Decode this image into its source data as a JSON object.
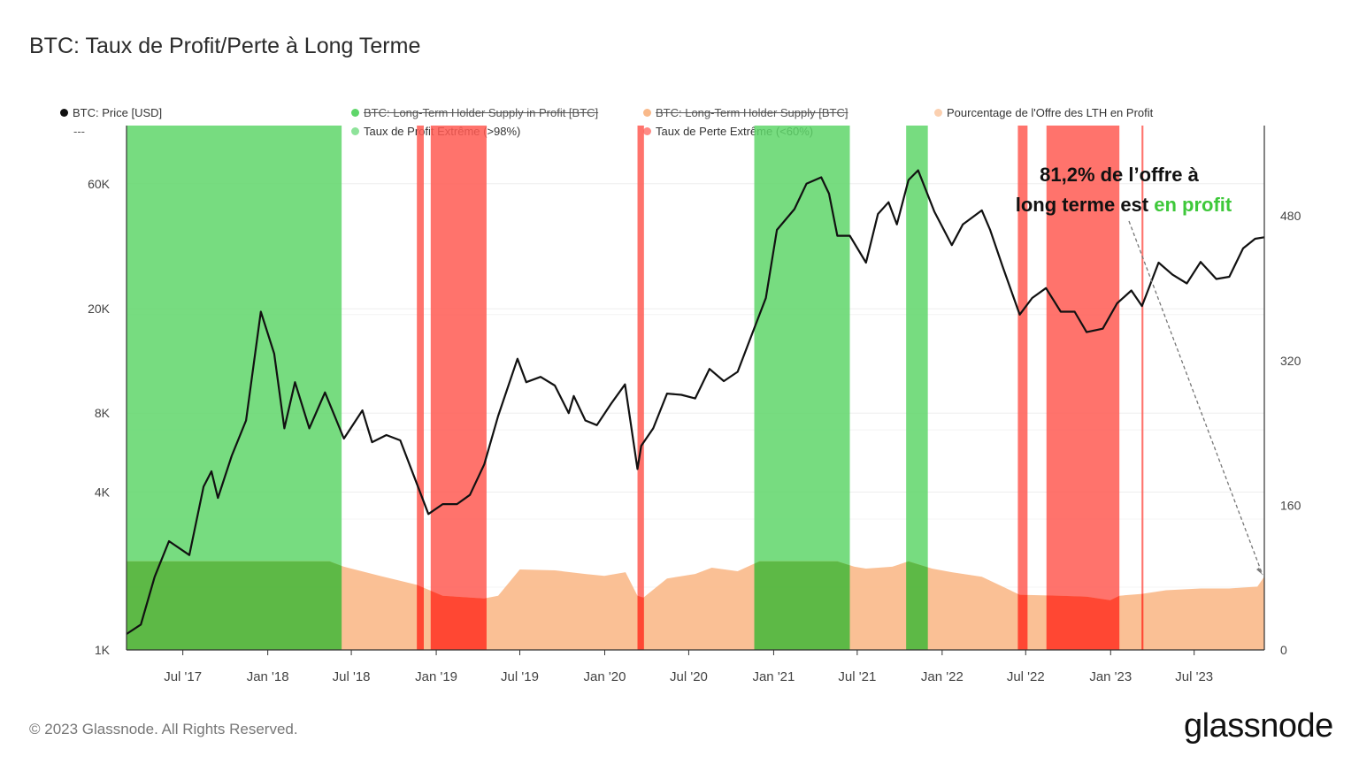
{
  "title": "BTC: Taux de Profit/Perte à Long Terme",
  "legend": {
    "price": "BTC: Price [USD]",
    "dash": "---",
    "lth_profit": "BTC: Long-Term Holder Supply in Profit [BTC]",
    "lth_supply": "BTC: Long-Term Holder Supply [BTC]",
    "pct_profit": "Pourcentage de l'Offre des LTH en Profit",
    "extreme_profit": "Taux de Profit Extrême (>98%)",
    "extreme_loss": "Taux de Perte Extrême (<60%)"
  },
  "annotation": {
    "line1": "81,2% de l’offre à",
    "line2_prefix": "long terme est ",
    "line2_highlight": "en profit"
  },
  "footer": "© 2023 Glassnode. All Rights Reserved.",
  "brand": "glassnode",
  "colors": {
    "price": "#111111",
    "profit_band": "#5fd66a",
    "loss_band": "#ff5a52",
    "pct_area": "#f9b98a",
    "highlight": "#3ec83a"
  },
  "chart_data": {
    "type": "line",
    "x_range": [
      "2017-03-01",
      "2023-11-30"
    ],
    "x_ticks": [
      "Jul '17",
      "Jan '18",
      "Jul '18",
      "Jan '19",
      "Jul '19",
      "Jan '20",
      "Jul '20",
      "Jan '21",
      "Jul '21",
      "Jan '22",
      "Jul '22",
      "Jan '23",
      "Jul '23"
    ],
    "y_left": {
      "scale": "log",
      "range": [
        1000,
        100000
      ],
      "ticks": [
        "1K",
        "4K",
        "8K",
        "20K",
        "60K"
      ],
      "tick_values": [
        1000,
        4000,
        8000,
        20000,
        60000
      ]
    },
    "y_right": {
      "scale": "linear",
      "range": [
        0,
        580
      ],
      "ticks": [
        "0",
        "160",
        "320",
        "480"
      ],
      "tick_values": [
        0,
        160,
        320,
        480
      ]
    },
    "series": [
      {
        "name": "BTC: Price [USD]",
        "axis": "left",
        "x": [
          "2017-03-01",
          "2017-04-01",
          "2017-05-01",
          "2017-06-01",
          "2017-07-15",
          "2017-08-15",
          "2017-09-01",
          "2017-09-15",
          "2017-10-15",
          "2017-11-15",
          "2017-12-17",
          "2018-01-15",
          "2018-02-06",
          "2018-03-01",
          "2018-04-01",
          "2018-05-05",
          "2018-06-15",
          "2018-07-25",
          "2018-08-15",
          "2018-09-15",
          "2018-10-15",
          "2018-11-20",
          "2018-12-15",
          "2019-01-15",
          "2019-02-15",
          "2019-03-15",
          "2019-04-15",
          "2019-05-15",
          "2019-06-26",
          "2019-07-15",
          "2019-08-15",
          "2019-09-15",
          "2019-10-15",
          "2019-10-26",
          "2019-11-20",
          "2019-12-15",
          "2020-01-15",
          "2020-02-14",
          "2020-03-12",
          "2020-03-20",
          "2020-04-15",
          "2020-05-15",
          "2020-06-15",
          "2020-07-15",
          "2020-08-15",
          "2020-09-15",
          "2020-10-15",
          "2020-11-15",
          "2020-12-15",
          "2021-01-08",
          "2021-02-15",
          "2021-03-13",
          "2021-04-14",
          "2021-05-01",
          "2021-05-19",
          "2021-06-15",
          "2021-07-20",
          "2021-08-15",
          "2021-09-07",
          "2021-09-25",
          "2021-10-20",
          "2021-11-10",
          "2021-12-15",
          "2022-01-22",
          "2022-02-15",
          "2022-03-28",
          "2022-04-15",
          "2022-05-12",
          "2022-06-18",
          "2022-07-15",
          "2022-08-14",
          "2022-09-15",
          "2022-10-15",
          "2022-11-10",
          "2022-12-15",
          "2023-01-15",
          "2023-02-15",
          "2023-03-10",
          "2023-04-15",
          "2023-05-15",
          "2023-06-15",
          "2023-07-15",
          "2023-08-18",
          "2023-09-15",
          "2023-10-15",
          "2023-11-10",
          "2023-11-30"
        ],
        "values": [
          1150,
          1250,
          1900,
          2600,
          2300,
          4200,
          4800,
          3800,
          5500,
          7500,
          19500,
          13500,
          7000,
          10500,
          7000,
          9600,
          6400,
          8200,
          6200,
          6600,
          6300,
          4300,
          3300,
          3600,
          3600,
          3900,
          5100,
          7800,
          12900,
          10500,
          11000,
          10200,
          8000,
          9300,
          7500,
          7200,
          8700,
          10300,
          4900,
          6000,
          7000,
          9500,
          9400,
          9100,
          11800,
          10600,
          11500,
          16000,
          22000,
          40000,
          48000,
          60000,
          63500,
          55000,
          38000,
          38000,
          30000,
          46000,
          51000,
          42000,
          62000,
          67500,
          47000,
          35000,
          42000,
          47500,
          40000,
          29000,
          19000,
          22000,
          24000,
          19500,
          19500,
          16300,
          16800,
          21000,
          23500,
          20500,
          30000,
          27000,
          25000,
          30200,
          26000,
          26500,
          34000,
          37000,
          37500
        ]
      },
      {
        "name": "Pourcentage de l'Offre des LTH en Profit",
        "axis": "right",
        "x": [
          "2017-03-01",
          "2017-06-01",
          "2018-01-15",
          "2018-05-15",
          "2018-06-15",
          "2018-09-01",
          "2018-11-20",
          "2019-01-15",
          "2019-03-15",
          "2019-04-15",
          "2019-05-15",
          "2019-07-01",
          "2019-09-15",
          "2019-11-20",
          "2019-12-31",
          "2020-02-15",
          "2020-03-12",
          "2020-03-25",
          "2020-05-15",
          "2020-07-15",
          "2020-08-20",
          "2020-10-15",
          "2020-12-01",
          "2021-05-19",
          "2021-06-25",
          "2021-07-20",
          "2021-09-15",
          "2021-10-20",
          "2021-12-10",
          "2022-01-22",
          "2022-03-28",
          "2022-05-12",
          "2022-06-18",
          "2022-09-15",
          "2022-11-10",
          "2022-12-31",
          "2023-01-20",
          "2023-03-10",
          "2023-05-01",
          "2023-07-15",
          "2023-09-15",
          "2023-11-15",
          "2023-11-30"
        ],
        "values": [
          98,
          98,
          98,
          98,
          92,
          82,
          72,
          60,
          58,
          57,
          60,
          89,
          88,
          84,
          82,
          86,
          60,
          58,
          79,
          84,
          91,
          87,
          98,
          98,
          92,
          90,
          92,
          98,
          90,
          86,
          81,
          70,
          61,
          60,
          59,
          55,
          60,
          62,
          66,
          68,
          68,
          70,
          81.2
        ]
      }
    ],
    "bands": [
      {
        "label": "Taux de Profit Extrême (>98%)",
        "ranges": [
          [
            "2017-03-01",
            "2018-06-10"
          ],
          [
            "2020-11-20",
            "2021-06-15"
          ],
          [
            "2021-10-15",
            "2021-12-01"
          ]
        ]
      },
      {
        "label": "Taux de Perte Extrême (<60%)",
        "ranges": [
          [
            "2018-11-20",
            "2018-12-05"
          ],
          [
            "2018-12-20",
            "2019-04-20"
          ],
          [
            "2020-03-12",
            "2020-03-26"
          ],
          [
            "2022-06-14",
            "2022-07-05"
          ],
          [
            "2022-08-15",
            "2023-01-20"
          ],
          [
            "2023-03-09",
            "2023-03-13"
          ]
        ]
      }
    ]
  }
}
